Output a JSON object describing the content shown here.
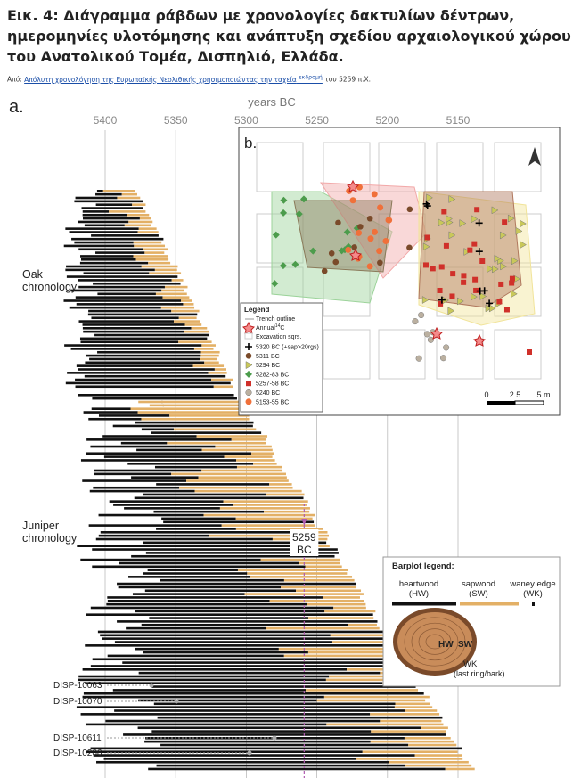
{
  "header": {
    "title": "Εικ. 4: Διάγραμμα ράβδων με χρονολογίες δακτυλίων δέντρων, ημερομηνίες υλοτόμησης και ανάπτυξη σχεδίου αρχαιολογικού χώρου του Ανατολικού Τομέα, Δισπηλιό, Ελλάδα."
  },
  "source": {
    "prefix": "Από:",
    "link": "Απόλυτη χρονολόγηση της Ευρωπαϊκής Νεολιθικής χρησιμοποιώντας την ταχεία",
    "sup": "εκδρομή",
    "suffix": "του 5259 π.Χ."
  },
  "panel_a": {
    "label": "a.",
    "axis_label": "years BC",
    "ticks": [
      5400,
      5350,
      5300,
      5250,
      5200,
      5150
    ],
    "oak_label": [
      "Oak",
      "chronology"
    ],
    "juniper_label": [
      "Juniper",
      "chronology"
    ],
    "felling": {
      "year": "5259",
      "unit": "BC"
    },
    "samples": [
      "DISP-10063",
      "DISP-10070",
      "DISP-10611",
      "DISP-10206"
    ]
  },
  "panel_b": {
    "label": "b.",
    "legend_title": "Legend",
    "trench": "Trench outline",
    "annual": [
      "Annual",
      "14",
      "C"
    ],
    "squares": "Excavation sqrs.",
    "entries": [
      "5320 BC (+sap>20rgs)",
      "5311 BC",
      "5294 BC",
      "5282-83 BC",
      "5257-58 BC",
      "5240 BC",
      "5153-55 BC"
    ],
    "scale": [
      "0",
      "2.5",
      "5 m"
    ]
  },
  "barplot_legend": {
    "title": "Barplot legend:",
    "heartwood": [
      "heartwood",
      "(HW)"
    ],
    "sapwood": [
      "sapwood",
      "(SW)"
    ],
    "waney": [
      "waney edge",
      "(WK)"
    ],
    "hw": "HW",
    "sw": "SW",
    "wk": [
      "WK",
      "(last ring/bark)"
    ]
  }
}
